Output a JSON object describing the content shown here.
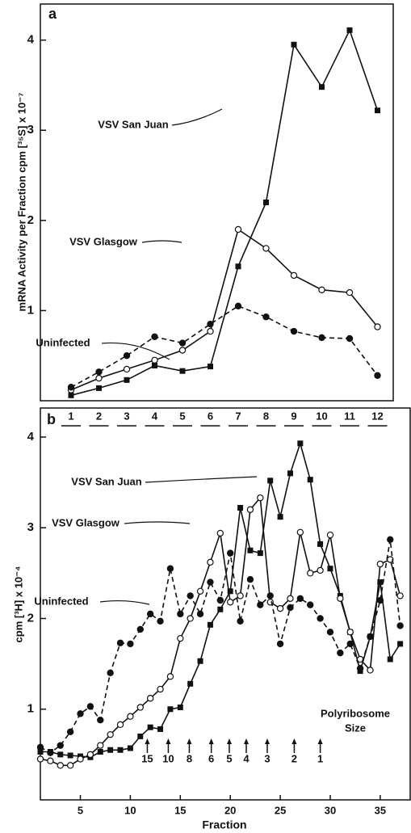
{
  "chart_data": [
    {
      "type": "line",
      "panel_label": "a",
      "ylabel": "mRNA Activity per Fraction cpm [³⁵S] x 10⁻⁷",
      "categories": [
        "1",
        "2",
        "3",
        "4",
        "5",
        "6",
        "7",
        "8",
        "9",
        "10",
        "11",
        "12"
      ],
      "ylim": [
        0,
        4.4
      ],
      "yticks": [
        1,
        2,
        3,
        4
      ],
      "series": [
        {
          "name": "VSV San Juan",
          "color": "#111",
          "marker": "square",
          "dashed": false,
          "values": [
            0.06,
            0.14,
            0.23,
            0.39,
            0.33,
            0.38,
            1.49,
            2.2,
            3.95,
            3.48,
            4.11,
            3.22
          ]
        },
        {
          "name": "VSV Glasgow",
          "color": "#111",
          "marker": "open-circle",
          "dashed": false,
          "values": [
            0.12,
            0.25,
            0.35,
            0.45,
            0.56,
            0.77,
            1.9,
            1.69,
            1.39,
            1.23,
            1.2,
            0.82
          ]
        },
        {
          "name": "Uninfected",
          "color": "#111",
          "marker": "circle",
          "dashed": true,
          "values": [
            0.15,
            0.32,
            0.5,
            0.71,
            0.64,
            0.85,
            1.05,
            0.93,
            0.77,
            0.7,
            0.69,
            0.28
          ]
        }
      ]
    },
    {
      "type": "line",
      "panel_label": "b",
      "ylabel": "cpm [³H] x 10⁻⁴",
      "xlabel": "Fraction",
      "x": [
        1,
        2,
        3,
        4,
        5,
        6,
        7,
        8,
        9,
        10,
        11,
        12,
        13,
        14,
        15,
        16,
        17,
        18,
        19,
        20,
        21,
        22,
        23,
        24,
        25,
        26,
        27,
        28,
        29,
        30,
        31,
        32,
        33,
        34,
        35,
        36,
        37
      ],
      "xlim": [
        1,
        38
      ],
      "xticks": [
        5,
        10,
        15,
        20,
        25,
        30,
        35
      ],
      "ylim": [
        0,
        4.32
      ],
      "yticks": [
        1,
        2,
        3,
        4
      ],
      "series": [
        {
          "name": "VSV San Juan",
          "color": "#111",
          "marker": "square",
          "dashed": false,
          "values": [
            0.53,
            0.53,
            0.5,
            0.49,
            0.48,
            0.47,
            0.53,
            0.55,
            0.55,
            0.57,
            0.7,
            0.8,
            0.78,
            1.0,
            1.02,
            1.28,
            1.53,
            1.93,
            2.1,
            2.3,
            3.22,
            2.75,
            2.72,
            3.52,
            3.12,
            3.6,
            3.93,
            3.53,
            2.82,
            2.55,
            2.25,
            1.85,
            1.42,
            1.8,
            2.4,
            1.55,
            1.72
          ]
        },
        {
          "name": "VSV Glasgow",
          "color": "#111",
          "marker": "open-circle",
          "dashed": false,
          "values": [
            0.45,
            0.43,
            0.38,
            0.38,
            0.45,
            0.5,
            0.6,
            0.72,
            0.83,
            0.92,
            1.02,
            1.12,
            1.22,
            1.36,
            1.78,
            2.0,
            2.3,
            2.62,
            2.94,
            2.18,
            2.25,
            3.2,
            3.33,
            2.18,
            2.11,
            2.22,
            2.95,
            2.5,
            2.53,
            2.92,
            2.22,
            1.85,
            1.55,
            1.43,
            2.6,
            2.65,
            2.25
          ]
        },
        {
          "name": "Uninfected",
          "color": "#111",
          "marker": "circle",
          "dashed": true,
          "values": [
            0.58,
            0.52,
            0.6,
            0.75,
            0.95,
            1.03,
            0.88,
            1.4,
            1.73,
            1.72,
            1.88,
            2.05,
            1.97,
            2.55,
            2.05,
            2.25,
            2.05,
            2.4,
            2.2,
            2.72,
            1.97,
            2.43,
            2.15,
            2.25,
            1.72,
            2.12,
            2.22,
            2.15,
            2.0,
            1.85,
            1.62,
            1.72,
            1.45,
            1.8,
            2.2,
            2.87,
            1.92
          ]
        }
      ],
      "size_title": [
        "Polyribosome",
        "Size"
      ],
      "size_markers": [
        {
          "x": 11.7,
          "size": 15
        },
        {
          "x": 13.8,
          "size": 10
        },
        {
          "x": 15.9,
          "size": 8
        },
        {
          "x": 18.1,
          "size": 6
        },
        {
          "x": 19.9,
          "size": 5
        },
        {
          "x": 21.6,
          "size": 4
        },
        {
          "x": 23.7,
          "size": 3
        },
        {
          "x": 26.4,
          "size": 2
        },
        {
          "x": 29,
          "size": 1
        }
      ]
    }
  ]
}
